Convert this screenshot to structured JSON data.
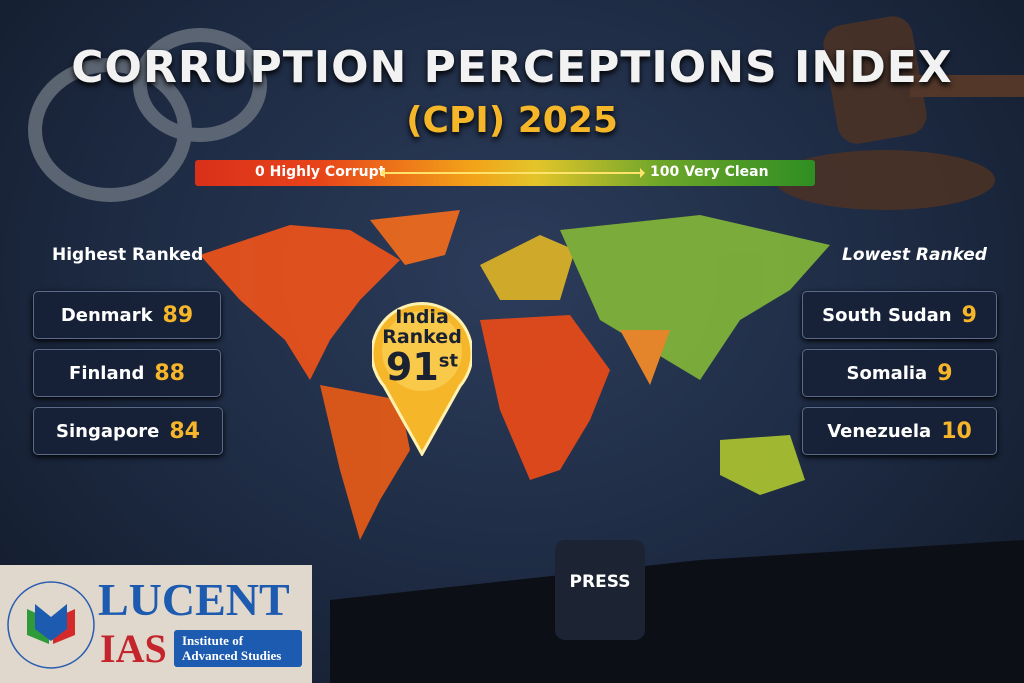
{
  "title": {
    "line1": "CORRUPTION PERCEPTIONS INDEX",
    "line2": "(CPI) 2025"
  },
  "scale": {
    "low_label": "0  Highly Corrupt",
    "high_label": "100  Very Clean",
    "colors": [
      "#d9301a",
      "#f2a419",
      "#2f8e22"
    ]
  },
  "highest": {
    "heading": "Highest Ranked",
    "items": [
      {
        "country": "Denmark",
        "score": "89"
      },
      {
        "country": "Finland",
        "score": "88"
      },
      {
        "country": "Singapore",
        "score": "84"
      }
    ]
  },
  "lowest": {
    "heading": "Lowest Ranked",
    "items": [
      {
        "country": "South Sudan",
        "score": "9"
      },
      {
        "country": "Somalia",
        "score": "9"
      },
      {
        "country": "Venezuela",
        "score": "10"
      }
    ]
  },
  "india_pin": {
    "line1": "India",
    "line2": "Ranked",
    "rank": "91",
    "suffix": "st"
  },
  "press_label": "PRESS",
  "logo": {
    "name": "LUCENT",
    "sub": "IAS",
    "tagline1": "Institute of",
    "tagline2": "Advanced Studies",
    "seal_text": "LUCENT IAS"
  }
}
